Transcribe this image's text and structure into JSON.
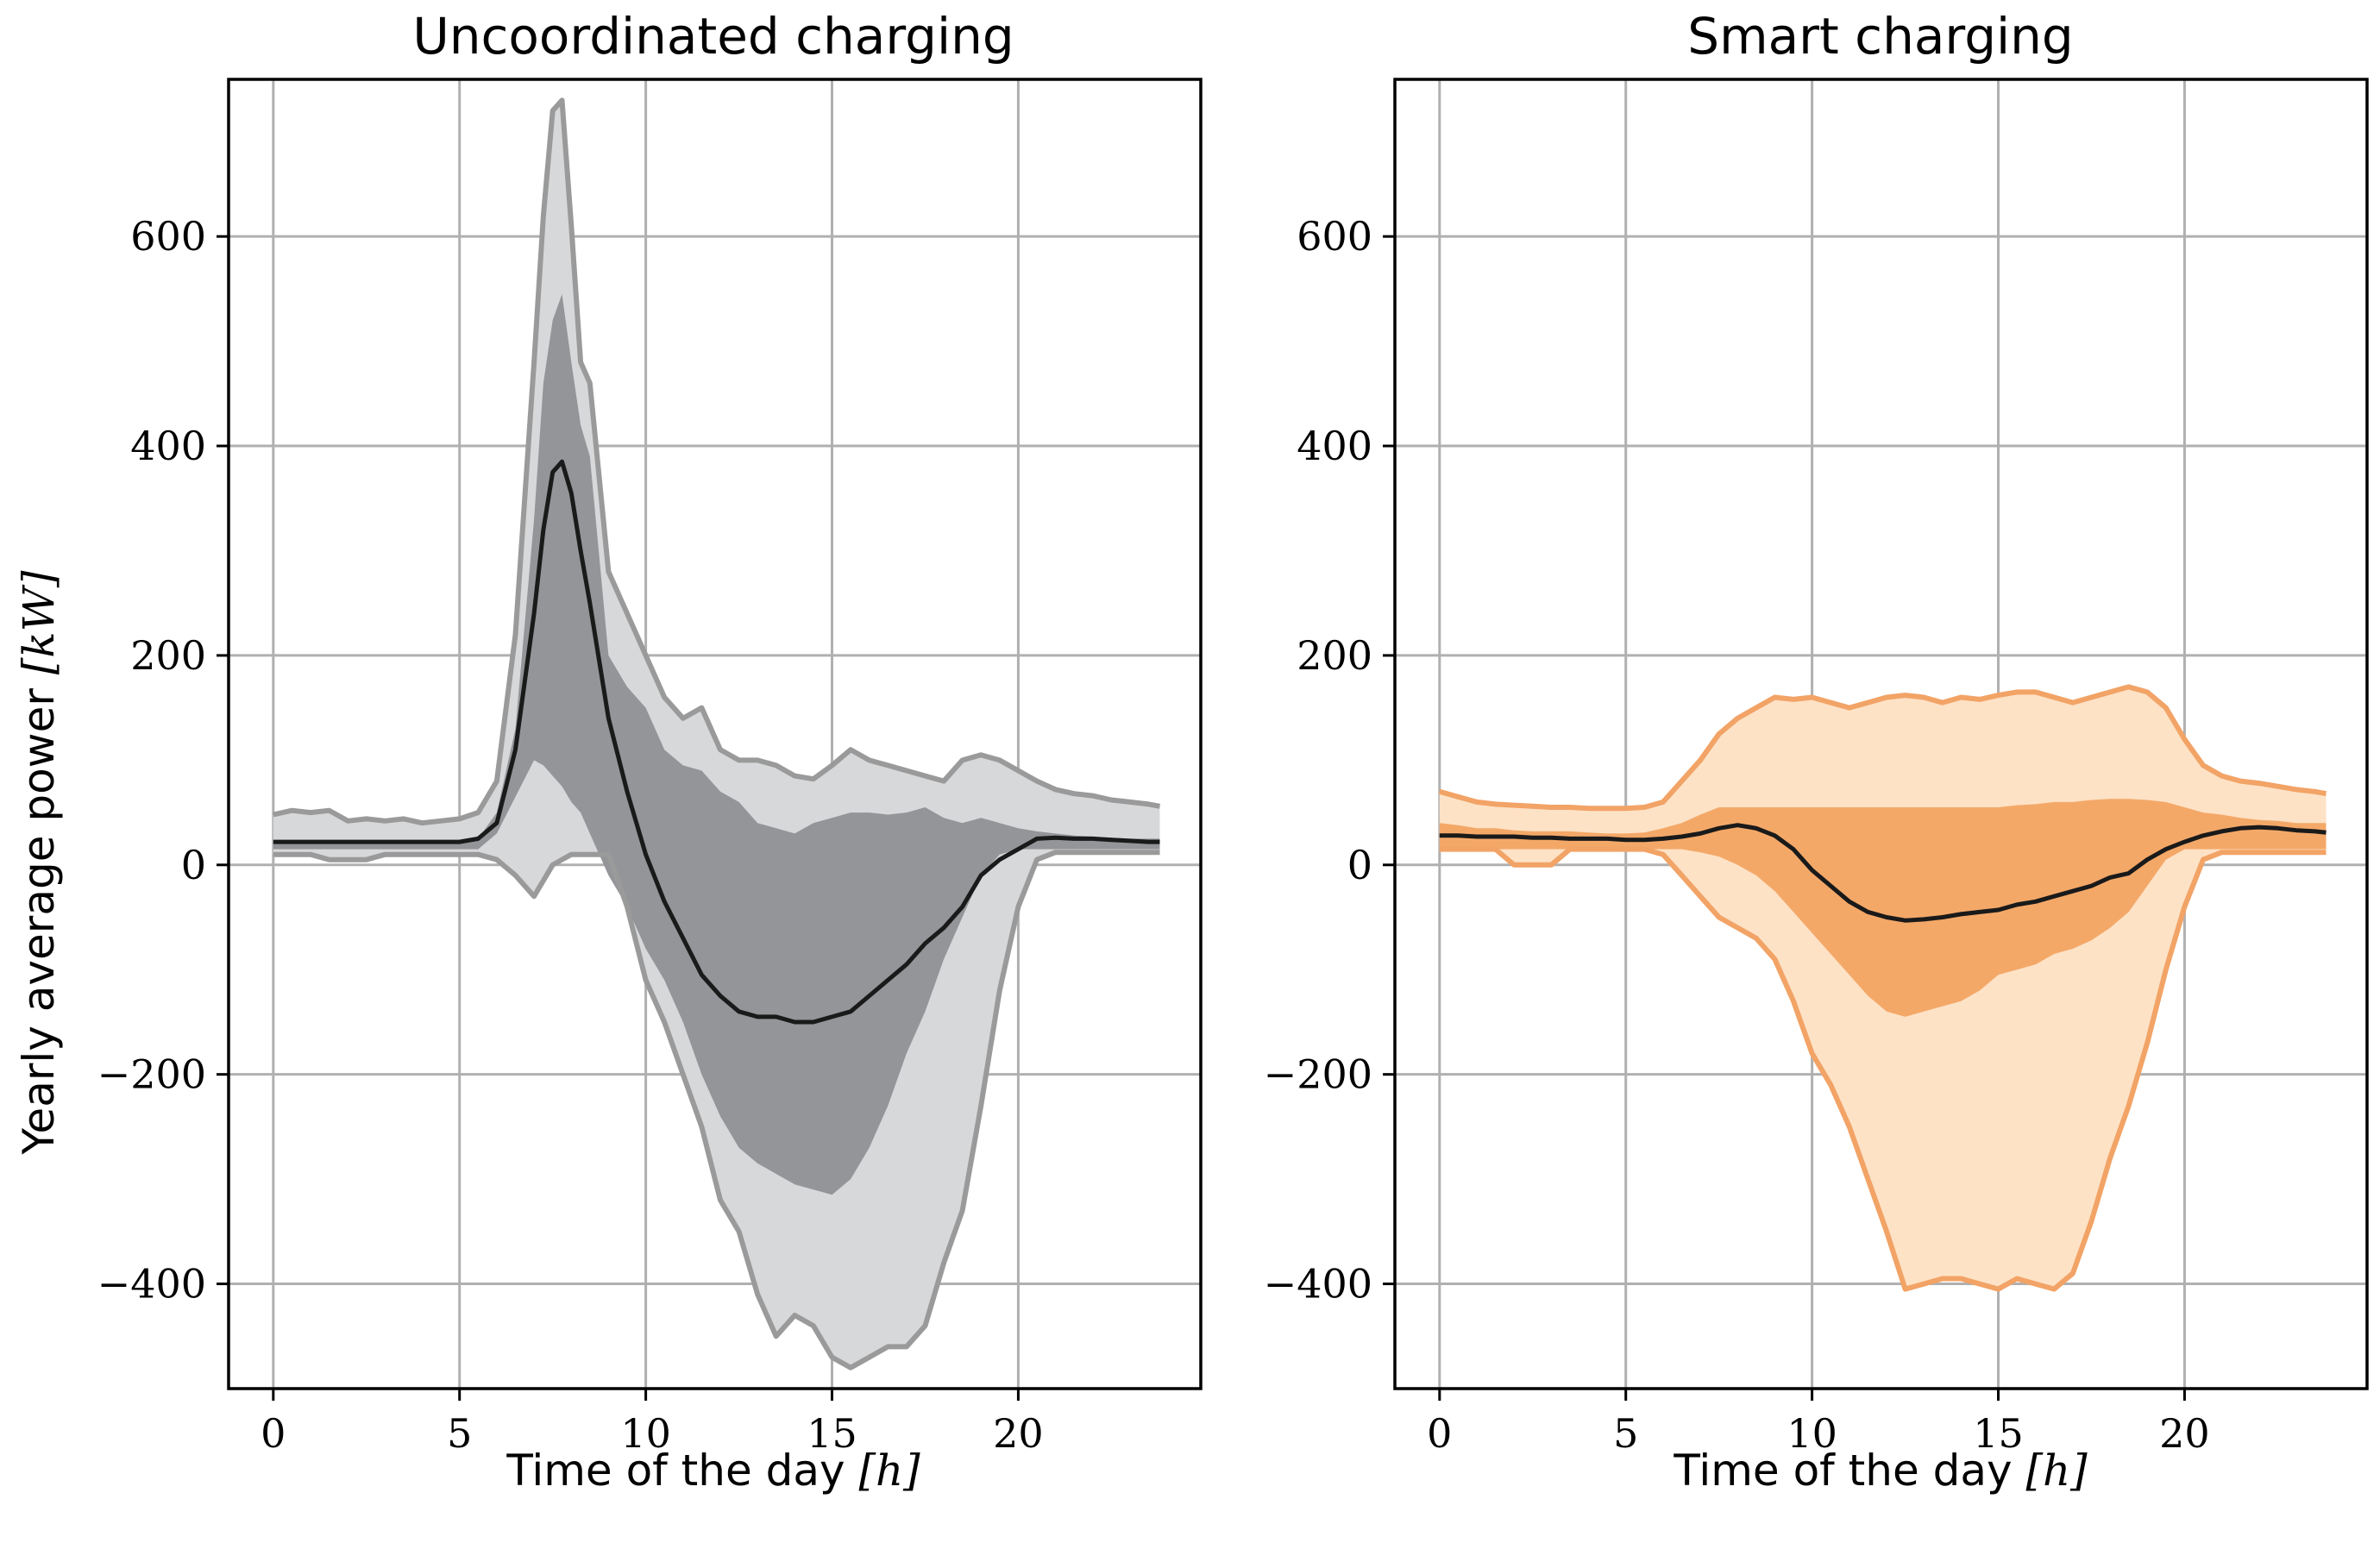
{
  "chart_data": [
    {
      "type": "area",
      "title": "Uncoordinated charging",
      "xlabel_text": "Time of the day ",
      "xlabel_unit": "[h]",
      "ylabel_text": "Yearly average power ",
      "ylabel_unit": "[kW]",
      "xlim": [
        -1.2,
        24.9
      ],
      "ylim": [
        -500,
        750
      ],
      "xticks": [
        0,
        5,
        10,
        15,
        20
      ],
      "yticks": [
        -400,
        -200,
        0,
        200,
        400,
        600
      ],
      "xtick_labels": [
        "0",
        "5",
        "10",
        "15",
        "20"
      ],
      "ytick_labels": [
        "−400",
        "−200",
        "0",
        "200",
        "400",
        "600"
      ],
      "grid": true,
      "colors": {
        "outer_fill": "#d7d8da",
        "inner_fill": "#939598",
        "outer_line": "#9a9a9a",
        "median_line": "#1a1a1a"
      },
      "x": [
        0,
        0.5,
        1,
        1.5,
        2,
        2.5,
        3,
        3.5,
        4,
        4.5,
        5,
        5.5,
        6,
        6.5,
        7,
        7.25,
        7.5,
        7.75,
        8,
        8.25,
        8.5,
        9,
        9.5,
        10,
        10.5,
        11,
        11.5,
        12,
        12.5,
        13,
        13.5,
        14,
        14.5,
        15,
        15.5,
        16,
        16.5,
        17,
        17.5,
        18,
        18.5,
        19,
        19.5,
        20,
        20.5,
        21,
        21.5,
        22,
        22.5,
        23,
        23.5,
        23.8
      ],
      "max": [
        48,
        52,
        50,
        52,
        42,
        44,
        42,
        44,
        40,
        42,
        44,
        50,
        80,
        220,
        480,
        620,
        720,
        730,
        610,
        480,
        460,
        280,
        240,
        200,
        160,
        140,
        150,
        110,
        100,
        100,
        95,
        85,
        82,
        95,
        110,
        100,
        95,
        90,
        85,
        80,
        100,
        105,
        100,
        90,
        80,
        72,
        68,
        66,
        62,
        60,
        58,
        56
      ],
      "p_high": [
        20,
        20,
        20,
        20,
        20,
        20,
        20,
        20,
        20,
        20,
        20,
        25,
        50,
        130,
        330,
        460,
        520,
        545,
        480,
        420,
        390,
        200,
        170,
        150,
        110,
        95,
        90,
        70,
        60,
        40,
        35,
        30,
        40,
        45,
        50,
        50,
        48,
        50,
        55,
        45,
        40,
        45,
        40,
        35,
        32,
        30,
        28,
        27,
        26,
        25,
        25,
        25
      ],
      "median": [
        22,
        22,
        22,
        22,
        22,
        22,
        22,
        22,
        22,
        22,
        22,
        25,
        40,
        110,
        240,
        320,
        375,
        385,
        355,
        300,
        250,
        140,
        70,
        10,
        -35,
        -70,
        -105,
        -125,
        -140,
        -145,
        -145,
        -150,
        -150,
        -145,
        -140,
        -125,
        -110,
        -95,
        -75,
        -60,
        -40,
        -10,
        5,
        15,
        25,
        26,
        25,
        25,
        24,
        23,
        22,
        22
      ],
      "p_low": [
        15,
        15,
        15,
        15,
        15,
        15,
        15,
        15,
        15,
        15,
        15,
        15,
        30,
        65,
        100,
        95,
        85,
        75,
        60,
        50,
        30,
        -10,
        -40,
        -80,
        -110,
        -150,
        -200,
        -240,
        -270,
        -285,
        -295,
        -305,
        -310,
        -315,
        -300,
        -270,
        -230,
        -180,
        -140,
        -90,
        -50,
        -10,
        10,
        15,
        15,
        15,
        15,
        15,
        15,
        15,
        15,
        15
      ],
      "min": [
        10,
        10,
        10,
        5,
        5,
        5,
        10,
        10,
        10,
        10,
        10,
        10,
        5,
        -10,
        -30,
        -15,
        0,
        5,
        10,
        10,
        10,
        10,
        -40,
        -110,
        -150,
        -200,
        -250,
        -320,
        -350,
        -410,
        -450,
        -430,
        -440,
        -470,
        -480,
        -470,
        -460,
        -460,
        -440,
        -380,
        -330,
        -230,
        -120,
        -40,
        5,
        12,
        12,
        12,
        12,
        12,
        12,
        12
      ]
    },
    {
      "type": "area",
      "title": "Smart charging",
      "xlabel_text": "Time of the day ",
      "xlabel_unit": "[h]",
      "xlim": [
        -1.2,
        24.9
      ],
      "ylim": [
        -500,
        750
      ],
      "xticks": [
        0,
        5,
        10,
        15,
        20
      ],
      "yticks": [
        -400,
        -200,
        0,
        200,
        400,
        600
      ],
      "xtick_labels": [
        "0",
        "5",
        "10",
        "15",
        "20"
      ],
      "ytick_labels": [
        "−400",
        "−200",
        "0",
        "200",
        "400",
        "600"
      ],
      "grid": true,
      "colors": {
        "outer_fill": "#fde2c6",
        "inner_fill": "#f4a868",
        "outer_line": "#f2a366",
        "median_line": "#1a1a1a"
      },
      "x": [
        0,
        0.5,
        1,
        1.5,
        2,
        2.5,
        3,
        3.5,
        4,
        4.5,
        5,
        5.5,
        6,
        6.5,
        7,
        7.5,
        8,
        8.5,
        9,
        9.5,
        10,
        10.5,
        11,
        11.5,
        12,
        12.5,
        13,
        13.5,
        14,
        14.5,
        15,
        15.5,
        16,
        16.5,
        17,
        17.5,
        18,
        18.5,
        19,
        19.5,
        20,
        20.5,
        21,
        21.5,
        22,
        22.5,
        23,
        23.5,
        23.8
      ],
      "max": [
        70,
        65,
        60,
        58,
        57,
        56,
        55,
        55,
        54,
        54,
        54,
        55,
        60,
        80,
        100,
        125,
        140,
        150,
        160,
        158,
        160,
        155,
        150,
        155,
        160,
        162,
        160,
        155,
        160,
        158,
        162,
        165,
        165,
        160,
        155,
        160,
        165,
        170,
        165,
        150,
        120,
        95,
        85,
        80,
        78,
        75,
        72,
        70,
        68
      ],
      "p_high": [
        40,
        38,
        35,
        35,
        33,
        32,
        32,
        32,
        31,
        30,
        30,
        31,
        35,
        40,
        48,
        55,
        55,
        55,
        55,
        55,
        55,
        55,
        55,
        55,
        55,
        55,
        55,
        55,
        55,
        55,
        55,
        57,
        58,
        60,
        60,
        62,
        63,
        63,
        62,
        60,
        55,
        50,
        48,
        45,
        43,
        42,
        40,
        40,
        40
      ],
      "median": [
        28,
        28,
        27,
        27,
        27,
        26,
        26,
        25,
        25,
        25,
        24,
        24,
        25,
        27,
        30,
        35,
        38,
        35,
        28,
        15,
        -5,
        -20,
        -35,
        -45,
        -50,
        -53,
        -52,
        -50,
        -47,
        -45,
        -43,
        -38,
        -35,
        -30,
        -25,
        -20,
        -12,
        -8,
        5,
        15,
        22,
        28,
        32,
        35,
        36,
        35,
        33,
        32,
        31
      ],
      "p_low": [
        15,
        15,
        15,
        15,
        15,
        15,
        15,
        15,
        15,
        15,
        15,
        15,
        15,
        15,
        12,
        8,
        0,
        -10,
        -25,
        -45,
        -65,
        -85,
        -105,
        -125,
        -140,
        -145,
        -140,
        -135,
        -130,
        -120,
        -105,
        -100,
        -95,
        -85,
        -80,
        -72,
        -60,
        -45,
        -20,
        5,
        15,
        15,
        15,
        15,
        15,
        15,
        15,
        15,
        15
      ],
      "min": [
        15,
        15,
        15,
        15,
        0,
        0,
        0,
        15,
        15,
        15,
        15,
        15,
        10,
        -10,
        -30,
        -50,
        -60,
        -70,
        -90,
        -130,
        -180,
        -210,
        -250,
        -300,
        -350,
        -405,
        -400,
        -395,
        -395,
        -400,
        -405,
        -395,
        -400,
        -405,
        -390,
        -340,
        -280,
        -230,
        -170,
        -100,
        -40,
        5,
        12,
        12,
        12,
        12,
        12,
        12,
        12
      ]
    }
  ]
}
